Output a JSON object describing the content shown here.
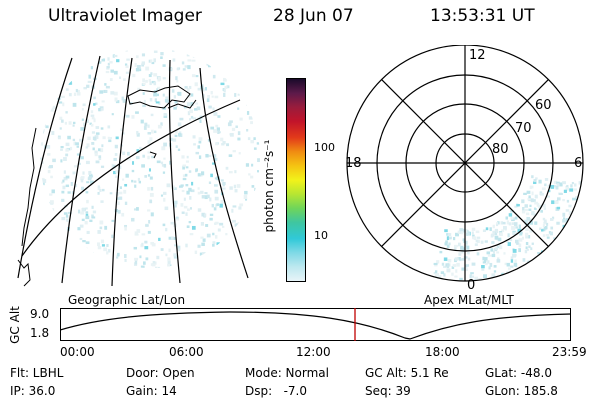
{
  "header": {
    "instrument": "Ultraviolet Imager",
    "date": "28 Jun 07",
    "time": "13:53:31 UT"
  },
  "colorbar": {
    "unit_label": "photon cm⁻²s⁻¹",
    "ticks": [
      "100",
      "10"
    ],
    "scale": "log",
    "colors": [
      "#e8f4f8",
      "#bde8ef",
      "#7fd9e6",
      "#30c9d8",
      "#3fc6a0",
      "#6fd55a",
      "#b7e632",
      "#f2f21a",
      "#f5c412",
      "#f08c12",
      "#e23a1a",
      "#c2142a",
      "#9a1c3c",
      "#5c1a4a",
      "#1a0a2a"
    ]
  },
  "polar_plot": {
    "mlt_labels": {
      "top": "12",
      "left": "18",
      "right": "6",
      "bottom": "0"
    },
    "lat_labels": [
      "60",
      "70",
      "80"
    ]
  },
  "panel_labels": {
    "left": "Geographic Lat/Lon",
    "right": "Apex MLat/MLT"
  },
  "altitude_plot": {
    "ylabel": "GC Alt",
    "yticks": [
      "9.0",
      "1.8"
    ],
    "xticks": [
      "00:00",
      "06:00",
      "12:00",
      "18:00",
      "23:59"
    ],
    "current_marker_color": "#c00000"
  },
  "info": {
    "filter": "Flt: LBHL",
    "ip": "IP: 36.0",
    "door": "Door: Open",
    "gain": "Gain: 14",
    "mode": "Mode: Normal",
    "dsp": "Dsp:   -7.0",
    "gc_alt": "GC Alt: 5.1 Re",
    "seq": "Seq: 39",
    "glat": "GLat: -48.0",
    "glon": "GLon: 185.8"
  }
}
